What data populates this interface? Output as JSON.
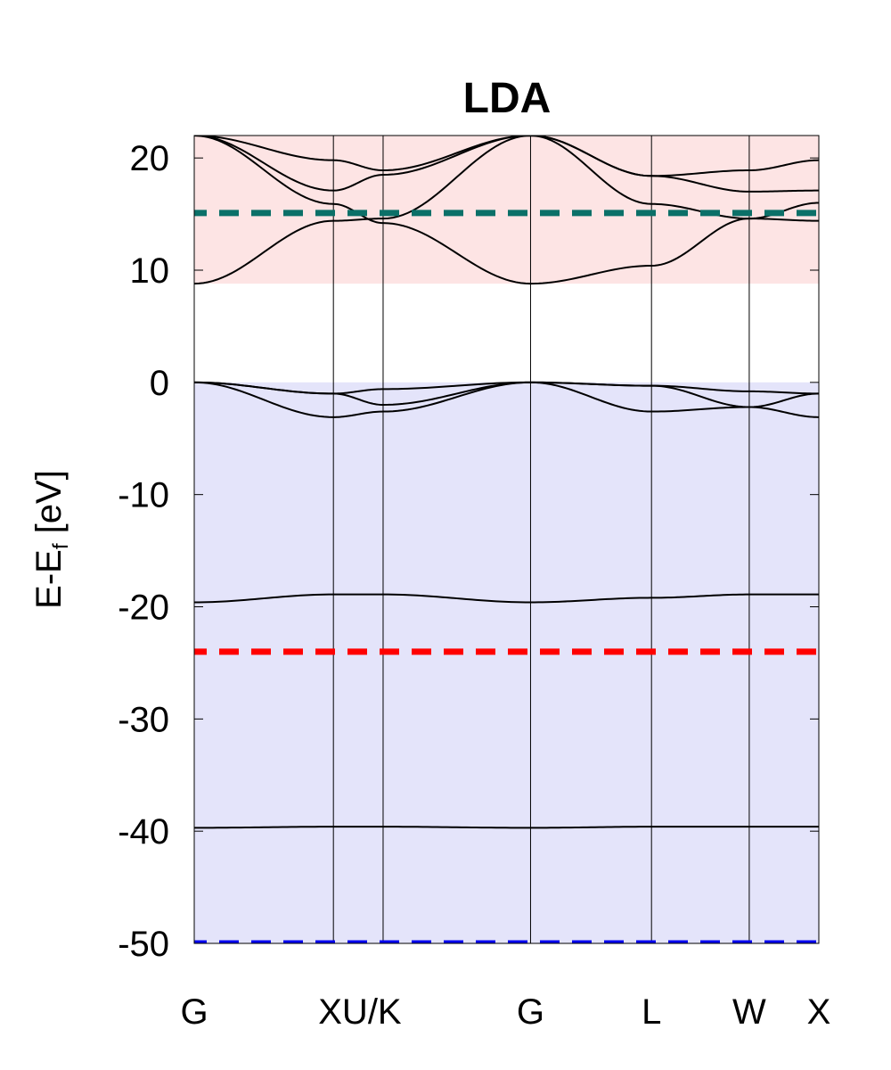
{
  "chart_data": {
    "type": "line",
    "title": "LDA",
    "ylabel": {
      "main": "E-E",
      "sub": "f",
      "unit": " [eV]"
    },
    "ylim": [
      -50,
      22
    ],
    "y_ticks": [
      20,
      10,
      0,
      -10,
      -20,
      -30,
      -40,
      -50
    ],
    "x_range": [
      0,
      3.77
    ],
    "kpoints": [
      {
        "label": "G",
        "x": 0
      },
      {
        "label": "X",
        "x": 0.84
      },
      {
        "label": "U/K",
        "x": 1.14
      },
      {
        "label": "G",
        "x": 2.03
      },
      {
        "label": "L",
        "x": 2.76
      },
      {
        "label": "W",
        "x": 3.35
      },
      {
        "label": "X",
        "x": 3.77
      }
    ],
    "kpoint_tick_labels": [
      {
        "label": "G",
        "x": 0
      },
      {
        "label": "XU/K",
        "x": 1.0
      },
      {
        "label": "G",
        "x": 2.03
      },
      {
        "label": "L",
        "x": 2.76
      },
      {
        "label": "W",
        "x": 3.35
      },
      {
        "label": "X",
        "x": 3.77
      }
    ],
    "regions": [
      {
        "name": "conduction",
        "y0": 8.8,
        "y1": 22,
        "color": "#fde4e4"
      },
      {
        "name": "valence",
        "y0": -50,
        "y1": 0,
        "color": "#e4e4fa"
      }
    ],
    "reference_lines": [
      {
        "y": 15.1,
        "color": "#0b7068"
      },
      {
        "y": -24.0,
        "color": "#ff0000"
      },
      {
        "y": -50.0,
        "color": "#0000ee"
      }
    ],
    "bands": [
      {
        "name": "band1",
        "x": [
          0,
          0.84,
          1.14,
          2.03,
          2.76,
          3.35,
          3.77
        ],
        "y": [
          -39.7,
          -39.6,
          -39.6,
          -39.7,
          -39.6,
          -39.6,
          -39.6
        ]
      },
      {
        "name": "band2",
        "x": [
          0,
          0.84,
          1.14,
          2.03,
          2.76,
          3.35,
          3.77
        ],
        "y": [
          -19.6,
          -18.9,
          -18.9,
          -19.6,
          -19.2,
          -18.9,
          -18.9
        ]
      },
      {
        "name": "band3",
        "x": [
          0,
          0.84,
          1.14,
          2.03,
          2.76,
          3.35,
          3.77
        ],
        "y": [
          0.0,
          -3.1,
          -2.6,
          0.0,
          -2.6,
          -2.2,
          -3.1
        ]
      },
      {
        "name": "band4",
        "x": [
          0,
          0.84,
          1.14,
          2.03,
          2.76,
          3.35,
          3.77
        ],
        "y": [
          0.0,
          -1.0,
          -2.0,
          0.0,
          -0.3,
          -2.2,
          -1.0
        ]
      },
      {
        "name": "band5",
        "x": [
          0,
          0.84,
          1.14,
          2.03,
          2.76,
          3.35,
          3.77
        ],
        "y": [
          0.0,
          -1.0,
          -0.6,
          0.0,
          -0.3,
          -0.8,
          -1.0
        ]
      },
      {
        "name": "band6",
        "x": [
          0,
          0.84,
          1.14,
          2.03,
          2.76,
          3.35,
          3.77
        ],
        "y": [
          8.8,
          14.4,
          14.6,
          22.0,
          15.9,
          14.6,
          14.4
        ]
      },
      {
        "name": "band7",
        "x": [
          0,
          0.84,
          1.14,
          2.03,
          2.76,
          3.35,
          3.77
        ],
        "y": [
          22.0,
          15.9,
          14.2,
          8.8,
          10.4,
          14.6,
          16.0
        ]
      },
      {
        "name": "band8",
        "x": [
          0,
          0.84,
          1.14,
          2.03,
          2.76,
          3.35,
          3.77
        ],
        "y": [
          22.0,
          17.1,
          18.5,
          22.0,
          18.4,
          17.0,
          17.1
        ]
      },
      {
        "name": "band9",
        "x": [
          0,
          0.84,
          1.14,
          2.03,
          2.76,
          3.35,
          3.77
        ],
        "y": [
          22.0,
          19.8,
          18.9,
          22.0,
          18.4,
          18.9,
          19.8
        ]
      }
    ]
  }
}
